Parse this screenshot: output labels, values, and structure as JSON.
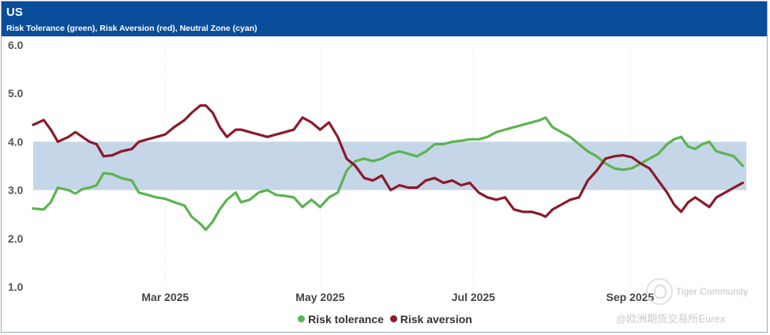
{
  "header": {
    "title": "US",
    "subtitle": "Risk Tolerance (green), Risk Aversion (red), Neutral Zone (cyan)"
  },
  "chart_data": {
    "type": "line",
    "title": "US",
    "subtitle": "Risk Tolerance (green), Risk Aversion (red), Neutral Zone (cyan)",
    "xlabel": "",
    "ylabel": "",
    "ylim": [
      1.0,
      6.0
    ],
    "yticks": [
      "1.0",
      "2.0",
      "3.0",
      "4.0",
      "5.0",
      "6.0"
    ],
    "xticks": [
      {
        "label": "Mar 2025",
        "week": 7.5
      },
      {
        "label": "May 2025",
        "week": 16.3
      },
      {
        "label": "Jul 2025",
        "week": 25.0
      },
      {
        "label": "Sep 2025",
        "week": 33.9
      }
    ],
    "x_range_weeks": [
      0,
      38.5
    ],
    "neutral_zone": {
      "low": 3.0,
      "high": 4.0,
      "color": "#c5d6e8"
    },
    "grid": "vertical-dotted",
    "legend_position": "bottom-center",
    "series": [
      {
        "name": "Risk tolerance",
        "color": "#5bb450",
        "points": [
          [
            0,
            2.62
          ],
          [
            0.6,
            2.6
          ],
          [
            1.0,
            2.75
          ],
          [
            1.4,
            3.05
          ],
          [
            2.0,
            3.0
          ],
          [
            2.4,
            2.93
          ],
          [
            2.8,
            3.02
          ],
          [
            3.2,
            3.05
          ],
          [
            3.6,
            3.1
          ],
          [
            4.0,
            3.35
          ],
          [
            4.5,
            3.33
          ],
          [
            5.0,
            3.25
          ],
          [
            5.6,
            3.2
          ],
          [
            6.0,
            2.95
          ],
          [
            6.5,
            2.9
          ],
          [
            7.0,
            2.85
          ],
          [
            7.5,
            2.82
          ],
          [
            8.0,
            2.75
          ],
          [
            8.6,
            2.68
          ],
          [
            9.0,
            2.45
          ],
          [
            9.5,
            2.3
          ],
          [
            9.8,
            2.18
          ],
          [
            10.2,
            2.35
          ],
          [
            10.6,
            2.6
          ],
          [
            11.0,
            2.8
          ],
          [
            11.5,
            2.95
          ],
          [
            11.8,
            2.75
          ],
          [
            12.3,
            2.8
          ],
          [
            12.8,
            2.95
          ],
          [
            13.3,
            3.0
          ],
          [
            13.8,
            2.9
          ],
          [
            14.3,
            2.88
          ],
          [
            14.8,
            2.85
          ],
          [
            15.3,
            2.65
          ],
          [
            15.8,
            2.8
          ],
          [
            16.3,
            2.65
          ],
          [
            16.8,
            2.85
          ],
          [
            17.3,
            2.95
          ],
          [
            17.8,
            3.4
          ],
          [
            18.3,
            3.6
          ],
          [
            18.8,
            3.65
          ],
          [
            19.3,
            3.6
          ],
          [
            19.8,
            3.65
          ],
          [
            20.3,
            3.75
          ],
          [
            20.8,
            3.8
          ],
          [
            21.3,
            3.75
          ],
          [
            21.8,
            3.7
          ],
          [
            22.3,
            3.8
          ],
          [
            22.8,
            3.95
          ],
          [
            23.3,
            3.95
          ],
          [
            23.8,
            4.0
          ],
          [
            24.3,
            4.02
          ],
          [
            24.8,
            4.05
          ],
          [
            25.3,
            4.05
          ],
          [
            25.8,
            4.1
          ],
          [
            26.3,
            4.2
          ],
          [
            26.8,
            4.25
          ],
          [
            27.3,
            4.3
          ],
          [
            27.8,
            4.35
          ],
          [
            28.3,
            4.4
          ],
          [
            28.8,
            4.45
          ],
          [
            29.1,
            4.5
          ],
          [
            29.5,
            4.3
          ],
          [
            30.0,
            4.2
          ],
          [
            30.5,
            4.1
          ],
          [
            31.0,
            3.95
          ],
          [
            31.5,
            3.8
          ],
          [
            32.0,
            3.7
          ],
          [
            32.5,
            3.55
          ],
          [
            33.0,
            3.45
          ],
          [
            33.5,
            3.42
          ],
          [
            34.0,
            3.45
          ],
          [
            34.5,
            3.55
          ],
          [
            35.0,
            3.65
          ],
          [
            35.5,
            3.75
          ],
          [
            36.0,
            3.95
          ],
          [
            36.4,
            4.05
          ],
          [
            36.8,
            4.1
          ],
          [
            37.2,
            3.9
          ],
          [
            37.6,
            3.85
          ],
          [
            38.0,
            3.95
          ],
          [
            38.4,
            4.0
          ],
          [
            38.8,
            3.8
          ],
          [
            39.3,
            3.75
          ],
          [
            39.8,
            3.7
          ],
          [
            40.3,
            3.5
          ]
        ]
      },
      {
        "name": "Risk aversion",
        "color": "#8b1a2b",
        "points": [
          [
            0,
            4.35
          ],
          [
            0.6,
            4.45
          ],
          [
            1.0,
            4.25
          ],
          [
            1.4,
            4.0
          ],
          [
            2.0,
            4.1
          ],
          [
            2.4,
            4.2
          ],
          [
            2.8,
            4.1
          ],
          [
            3.2,
            4.0
          ],
          [
            3.6,
            3.95
          ],
          [
            4.0,
            3.7
          ],
          [
            4.5,
            3.72
          ],
          [
            5.0,
            3.8
          ],
          [
            5.6,
            3.85
          ],
          [
            6.0,
            4.0
          ],
          [
            6.5,
            4.05
          ],
          [
            7.0,
            4.1
          ],
          [
            7.5,
            4.15
          ],
          [
            8.0,
            4.3
          ],
          [
            8.6,
            4.45
          ],
          [
            9.0,
            4.6
          ],
          [
            9.5,
            4.75
          ],
          [
            9.8,
            4.75
          ],
          [
            10.2,
            4.6
          ],
          [
            10.6,
            4.3
          ],
          [
            11.0,
            4.1
          ],
          [
            11.5,
            4.25
          ],
          [
            11.8,
            4.25
          ],
          [
            12.3,
            4.2
          ],
          [
            12.8,
            4.15
          ],
          [
            13.3,
            4.1
          ],
          [
            13.8,
            4.15
          ],
          [
            14.3,
            4.2
          ],
          [
            14.8,
            4.25
          ],
          [
            15.3,
            4.5
          ],
          [
            15.8,
            4.4
          ],
          [
            16.3,
            4.25
          ],
          [
            16.8,
            4.4
          ],
          [
            17.3,
            4.1
          ],
          [
            17.8,
            3.65
          ],
          [
            18.3,
            3.5
          ],
          [
            18.8,
            3.25
          ],
          [
            19.3,
            3.2
          ],
          [
            19.8,
            3.3
          ],
          [
            20.3,
            3.0
          ],
          [
            20.8,
            3.1
          ],
          [
            21.3,
            3.05
          ],
          [
            21.8,
            3.05
          ],
          [
            22.3,
            3.2
          ],
          [
            22.8,
            3.25
          ],
          [
            23.3,
            3.15
          ],
          [
            23.8,
            3.2
          ],
          [
            24.3,
            3.1
          ],
          [
            24.8,
            3.15
          ],
          [
            25.3,
            2.95
          ],
          [
            25.8,
            2.85
          ],
          [
            26.3,
            2.8
          ],
          [
            26.8,
            2.85
          ],
          [
            27.3,
            2.6
          ],
          [
            27.8,
            2.55
          ],
          [
            28.3,
            2.55
          ],
          [
            28.8,
            2.5
          ],
          [
            29.1,
            2.45
          ],
          [
            29.5,
            2.6
          ],
          [
            30.0,
            2.7
          ],
          [
            30.5,
            2.8
          ],
          [
            31.0,
            2.85
          ],
          [
            31.5,
            3.2
          ],
          [
            32.0,
            3.4
          ],
          [
            32.5,
            3.65
          ],
          [
            33.0,
            3.7
          ],
          [
            33.5,
            3.72
          ],
          [
            34.0,
            3.68
          ],
          [
            34.5,
            3.55
          ],
          [
            35.0,
            3.45
          ],
          [
            35.5,
            3.2
          ],
          [
            36.0,
            2.95
          ],
          [
            36.4,
            2.7
          ],
          [
            36.8,
            2.55
          ],
          [
            37.2,
            2.75
          ],
          [
            37.6,
            2.85
          ],
          [
            38.0,
            2.75
          ],
          [
            38.4,
            2.65
          ],
          [
            38.8,
            2.85
          ],
          [
            39.3,
            2.95
          ],
          [
            39.8,
            3.05
          ],
          [
            40.3,
            3.15
          ]
        ]
      }
    ]
  },
  "legend": {
    "items": [
      {
        "label": "Risk tolerance",
        "color": "#5bb450"
      },
      {
        "label": "Risk aversion",
        "color": "#8b1a2b"
      }
    ]
  },
  "watermark": {
    "brand": "Tiger Community",
    "handle": "@欧洲期货交易所Eurex"
  }
}
